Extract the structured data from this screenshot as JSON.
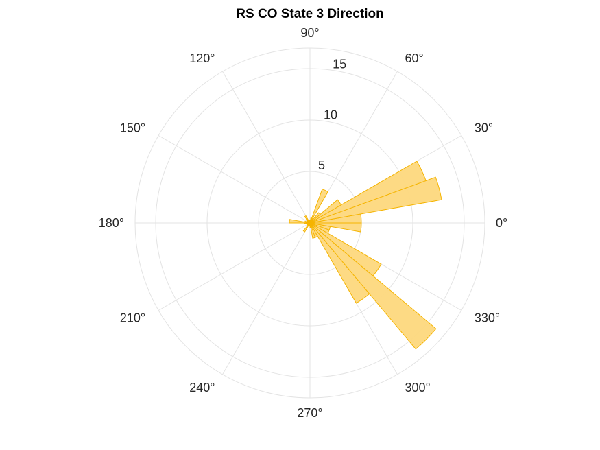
{
  "chart_data": {
    "type": "polar-histogram",
    "title": "RS  CO State 3 Direction",
    "angle_ticks": [
      0,
      30,
      60,
      90,
      120,
      150,
      180,
      210,
      240,
      270,
      300,
      330
    ],
    "angle_tick_labels": [
      "0°",
      "30°",
      "60°",
      "90°",
      "120°",
      "150°",
      "180°",
      "210°",
      "240°",
      "270°",
      "300°",
      "330°"
    ],
    "radial_ticks": [
      5,
      10,
      15
    ],
    "radial_tick_labels": [
      "5",
      "10",
      "15"
    ],
    "rlim": [
      0,
      17
    ],
    "bin_width_deg": 10,
    "bins": [
      {
        "start": 0,
        "end": 10,
        "value": 5
      },
      {
        "start": 10,
        "end": 20,
        "value": 13
      },
      {
        "start": 20,
        "end": 30,
        "value": 12
      },
      {
        "start": 30,
        "end": 40,
        "value": 3.5
      },
      {
        "start": 40,
        "end": 50,
        "value": 1.3
      },
      {
        "start": 50,
        "end": 60,
        "value": 0.5
      },
      {
        "start": 60,
        "end": 70,
        "value": 3.5
      },
      {
        "start": 70,
        "end": 80,
        "value": 0.5
      },
      {
        "start": 80,
        "end": 90,
        "value": 0.3
      },
      {
        "start": 90,
        "end": 100,
        "value": 0.3
      },
      {
        "start": 100,
        "end": 110,
        "value": 0.3
      },
      {
        "start": 110,
        "end": 120,
        "value": 0.3
      },
      {
        "start": 120,
        "end": 130,
        "value": 0.8
      },
      {
        "start": 130,
        "end": 140,
        "value": 0.5
      },
      {
        "start": 140,
        "end": 150,
        "value": 0.3
      },
      {
        "start": 150,
        "end": 160,
        "value": 0.3
      },
      {
        "start": 160,
        "end": 170,
        "value": 0.5
      },
      {
        "start": 170,
        "end": 180,
        "value": 2
      },
      {
        "start": 180,
        "end": 190,
        "value": 0.5
      },
      {
        "start": 190,
        "end": 200,
        "value": 0.3
      },
      {
        "start": 200,
        "end": 210,
        "value": 0.3
      },
      {
        "start": 210,
        "end": 220,
        "value": 0.3
      },
      {
        "start": 220,
        "end": 230,
        "value": 0.3
      },
      {
        "start": 230,
        "end": 240,
        "value": 1
      },
      {
        "start": 240,
        "end": 250,
        "value": 0.3
      },
      {
        "start": 250,
        "end": 260,
        "value": 0.3
      },
      {
        "start": 260,
        "end": 270,
        "value": 0.3
      },
      {
        "start": 270,
        "end": 280,
        "value": 0.5
      },
      {
        "start": 280,
        "end": 290,
        "value": 1.5
      },
      {
        "start": 290,
        "end": 300,
        "value": 1.5
      },
      {
        "start": 300,
        "end": 310,
        "value": 9
      },
      {
        "start": 310,
        "end": 320,
        "value": 16
      },
      {
        "start": 320,
        "end": 330,
        "value": 8
      },
      {
        "start": 330,
        "end": 340,
        "value": 2
      },
      {
        "start": 340,
        "end": 350,
        "value": 2
      },
      {
        "start": 350,
        "end": 360,
        "value": 5
      }
    ],
    "grid": true,
    "colors": {
      "bar_fill": "#fdd87d",
      "bar_stroke": "#f5b400",
      "grid": "#e3e3e3",
      "text": "#262626"
    }
  }
}
